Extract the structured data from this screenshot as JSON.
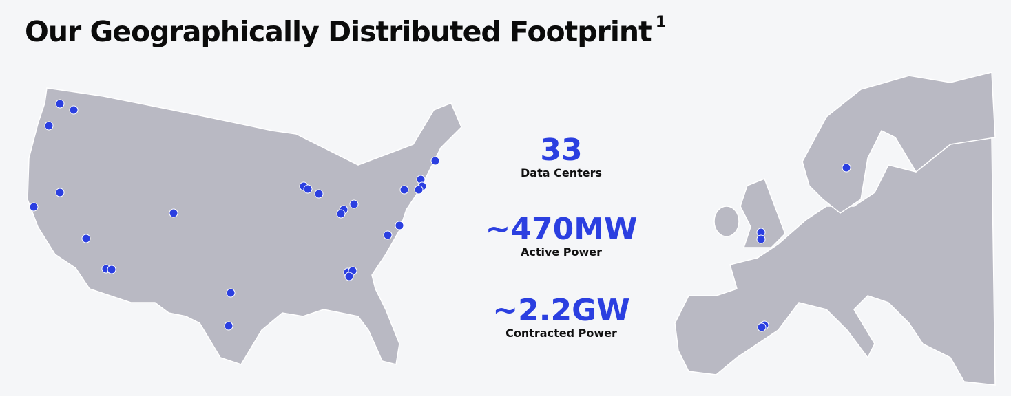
{
  "header": {
    "title": "Our Geographically Distributed Footprint",
    "footnote_marker": "1"
  },
  "stats": [
    {
      "value": "33",
      "label": "Data Centers"
    },
    {
      "value": "~470MW",
      "label": "Active Power"
    },
    {
      "value": "~2.2GW",
      "label": "Contracted Power"
    }
  ]
}
